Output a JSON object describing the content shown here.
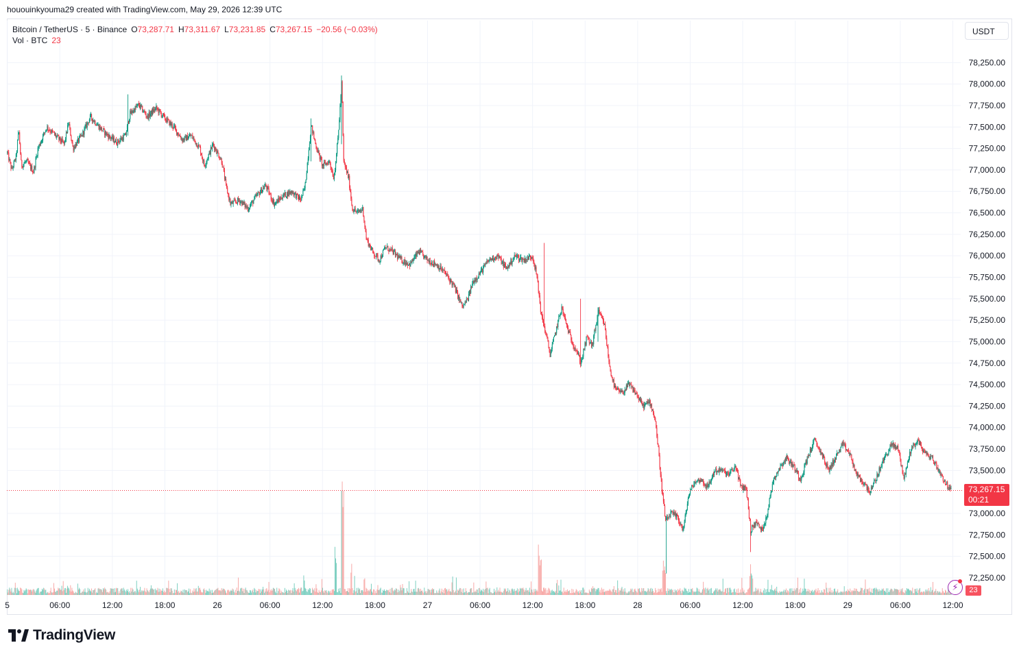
{
  "snapshot_header": "hououinkyouma29 created with TradingView.com, May 29, 2026 12:39 UTC",
  "legend": {
    "symbol": "Bitcoin / TetherUS · 5 · Binance",
    "open_label": "O",
    "open": "73,287.71",
    "high_label": "H",
    "high": "73,311.67",
    "low_label": "L",
    "low": "73,231.85",
    "close_label": "C",
    "close": "73,267.15",
    "change": "−20.56 (−0.03%)",
    "volume_label": "Vol · BTC",
    "volume": "23"
  },
  "currency_button": "USDT",
  "last_price": {
    "value": "73,267.15",
    "countdown": "00:21"
  },
  "volume_badge": "23",
  "logo_text": "TradingView",
  "colors": {
    "up": "#089981",
    "down": "#f23645",
    "grid": "#f0f3fa",
    "axis_text": "#131722",
    "price_line": "#f23645",
    "vol_up": "#7ccfc0",
    "vol_down": "#f7a9a7"
  },
  "chart_data": {
    "type": "candlestick",
    "interval": "5m",
    "y_ticks": [
      "78,250.00",
      "78,000.00",
      "77,750.00",
      "77,500.00",
      "77,250.00",
      "77,000.00",
      "76,750.00",
      "76,500.00",
      "76,250.00",
      "76,000.00",
      "75,750.00",
      "75,500.00",
      "75,250.00",
      "75,000.00",
      "74,750.00",
      "74,500.00",
      "74,250.00",
      "74,000.00",
      "73,750.00",
      "73,500.00",
      "73,000.00",
      "72,750.00",
      "72,500.00",
      "72,250.00"
    ],
    "y_tick_values": [
      78250,
      78000,
      77750,
      77500,
      77250,
      77000,
      76750,
      76500,
      76250,
      76000,
      75750,
      75500,
      75250,
      75000,
      74750,
      74500,
      74250,
      74000,
      73750,
      73500,
      73000,
      72750,
      72500,
      72250
    ],
    "ylim": [
      72050,
      78500
    ],
    "x_ticks": [
      "5",
      "06:00",
      "12:00",
      "18:00",
      "26",
      "06:00",
      "12:00",
      "18:00",
      "27",
      "06:00",
      "12:00",
      "18:00",
      "28",
      "06:00",
      "12:00",
      "18:00",
      "29",
      "06:00",
      "12:00"
    ],
    "x_tick_hours": [
      0,
      6,
      12,
      18,
      24,
      30,
      36,
      42,
      48,
      54,
      60,
      66,
      72,
      78,
      84,
      90,
      96,
      102,
      108
    ],
    "x_range_hours": [
      -0.05,
      108.9
    ],
    "price_path": [
      [
        0,
        77200
      ],
      [
        0.5,
        77000
      ],
      [
        1,
        77150
      ],
      [
        1.3,
        77470
      ],
      [
        1.6,
        77050
      ],
      [
        2.2,
        77100
      ],
      [
        3,
        76980
      ],
      [
        3.5,
        77250
      ],
      [
        4.5,
        77500
      ],
      [
        5.5,
        77400
      ],
      [
        6.5,
        77300
      ],
      [
        7,
        77550
      ],
      [
        7.5,
        77250
      ],
      [
        8.5,
        77400
      ],
      [
        9.5,
        77620
      ],
      [
        10.5,
        77500
      ],
      [
        11.5,
        77400
      ],
      [
        12.5,
        77320
      ],
      [
        13.5,
        77400
      ],
      [
        14,
        77650
      ],
      [
        15,
        77760
      ],
      [
        16,
        77620
      ],
      [
        17,
        77720
      ],
      [
        18,
        77600
      ],
      [
        19,
        77500
      ],
      [
        20,
        77350
      ],
      [
        21,
        77400
      ],
      [
        22,
        77250
      ],
      [
        22.5,
        77050
      ],
      [
        23.5,
        77300
      ],
      [
        24.5,
        77100
      ],
      [
        25,
        76800
      ],
      [
        25.5,
        76600
      ],
      [
        26.5,
        76650
      ],
      [
        27.5,
        76550
      ],
      [
        28.5,
        76700
      ],
      [
        29.5,
        76820
      ],
      [
        30.5,
        76600
      ],
      [
        31.5,
        76700
      ],
      [
        32.5,
        76750
      ],
      [
        33.5,
        76650
      ],
      [
        34,
        76800
      ],
      [
        34.7,
        77520
      ],
      [
        35.2,
        77300
      ],
      [
        36,
        77050
      ],
      [
        36.8,
        77100
      ],
      [
        37.3,
        76900
      ],
      [
        37.8,
        77400
      ],
      [
        38.2,
        78050
      ],
      [
        38.4,
        77100
      ],
      [
        39,
        76900
      ],
      [
        39.4,
        76550
      ],
      [
        40,
        76500
      ],
      [
        40.6,
        76550
      ],
      [
        41,
        76200
      ],
      [
        41.7,
        76050
      ],
      [
        42.5,
        75950
      ],
      [
        43.2,
        76100
      ],
      [
        44,
        76050
      ],
      [
        45,
        75950
      ],
      [
        46,
        75900
      ],
      [
        47,
        76050
      ],
      [
        48,
        75950
      ],
      [
        49,
        75900
      ],
      [
        50,
        75800
      ],
      [
        51,
        75650
      ],
      [
        52,
        75400
      ],
      [
        52.6,
        75500
      ],
      [
        53.2,
        75700
      ],
      [
        54,
        75800
      ],
      [
        55,
        75950
      ],
      [
        56,
        76000
      ],
      [
        57,
        75850
      ],
      [
        58,
        76000
      ],
      [
        59,
        75950
      ],
      [
        60,
        76000
      ],
      [
        60.5,
        75750
      ],
      [
        61,
        75300
      ],
      [
        61.5,
        75100
      ],
      [
        62,
        74850
      ],
      [
        62.6,
        75100
      ],
      [
        63.3,
        75400
      ],
      [
        64,
        75150
      ],
      [
        64.5,
        75000
      ],
      [
        65,
        74900
      ],
      [
        65.5,
        74750
      ],
      [
        66.2,
        75050
      ],
      [
        66.8,
        74950
      ],
      [
        67.5,
        75350
      ],
      [
        68.2,
        75200
      ],
      [
        68.8,
        74700
      ],
      [
        69.4,
        74450
      ],
      [
        70.2,
        74400
      ],
      [
        71,
        74500
      ],
      [
        71.8,
        74400
      ],
      [
        72.6,
        74250
      ],
      [
        73.4,
        74300
      ],
      [
        74,
        74100
      ],
      [
        74.4,
        73700
      ],
      [
        74.8,
        73250
      ],
      [
        75.2,
        72900
      ],
      [
        75.8,
        73000
      ],
      [
        76.6,
        72950
      ],
      [
        77.2,
        72800
      ],
      [
        77.8,
        73200
      ],
      [
        78.4,
        73350
      ],
      [
        79.2,
        73400
      ],
      [
        80,
        73300
      ],
      [
        80.8,
        73500
      ],
      [
        81.6,
        73500
      ],
      [
        82.4,
        73450
      ],
      [
        83.2,
        73550
      ],
      [
        83.8,
        73300
      ],
      [
        84.4,
        73300
      ],
      [
        84.9,
        72800
      ],
      [
        85.5,
        72900
      ],
      [
        86.2,
        72800
      ],
      [
        86.8,
        73000
      ],
      [
        87.5,
        73400
      ],
      [
        88.3,
        73550
      ],
      [
        89,
        73650
      ],
      [
        89.8,
        73550
      ],
      [
        90.6,
        73400
      ],
      [
        91.4,
        73650
      ],
      [
        92.2,
        73850
      ],
      [
        93,
        73700
      ],
      [
        93.8,
        73500
      ],
      [
        94.6,
        73650
      ],
      [
        95.4,
        73800
      ],
      [
        96.2,
        73700
      ],
      [
        97,
        73450
      ],
      [
        97.8,
        73350
      ],
      [
        98.6,
        73250
      ],
      [
        99.4,
        73450
      ],
      [
        100.2,
        73650
      ],
      [
        101,
        73800
      ],
      [
        101.8,
        73750
      ],
      [
        102.4,
        73400
      ],
      [
        103.2,
        73750
      ],
      [
        104,
        73850
      ],
      [
        104.8,
        73700
      ],
      [
        105.6,
        73650
      ],
      [
        106.4,
        73500
      ],
      [
        107.2,
        73350
      ],
      [
        107.8,
        73267
      ]
    ],
    "wick_events": [
      [
        38.2,
        78100,
        77300
      ],
      [
        13.8,
        77880,
        77400
      ],
      [
        61.3,
        76150,
        75400
      ],
      [
        75.3,
        72900,
        72300
      ],
      [
        84.9,
        72850,
        72550
      ],
      [
        65.5,
        75500,
        74700
      ],
      [
        67.5,
        75400,
        75000
      ],
      [
        34.7,
        77600,
        77100
      ]
    ],
    "volume_spikes": [
      [
        38.2,
        280
      ],
      [
        38.4,
        260
      ],
      [
        37.5,
        120
      ],
      [
        60.7,
        140
      ],
      [
        60.9,
        115
      ],
      [
        74.9,
        95
      ],
      [
        75.1,
        70
      ],
      [
        84.9,
        75
      ],
      [
        85.1,
        60
      ],
      [
        39.3,
        90
      ],
      [
        40.8,
        55
      ],
      [
        33.9,
        50
      ],
      [
        62.8,
        45
      ]
    ],
    "volume_axis_max_btc": 300
  }
}
